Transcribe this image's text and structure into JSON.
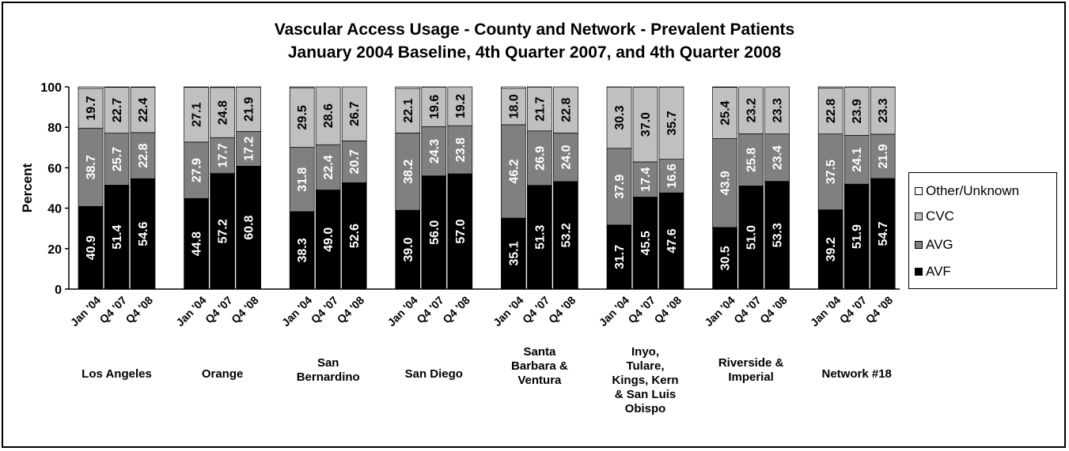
{
  "chart_data": {
    "type": "bar",
    "stacked": true,
    "title": "Vascular Access Usage - County and Network - Prevalent Patients",
    "subtitle": "January 2004 Baseline, 4th Quarter 2007, and 4th Quarter 2008",
    "ylabel": "Percent",
    "ylim": [
      0,
      100
    ],
    "yticks": [
      "0",
      "20",
      "40",
      "60",
      "80",
      "100"
    ],
    "period_labels": [
      "Jan '04",
      "Q4 '07",
      "Q4 '08"
    ],
    "groups": [
      {
        "label": "Los Angeles",
        "AVF": [
          40.9,
          51.4,
          54.6
        ],
        "AVG": [
          38.7,
          25.7,
          22.8
        ],
        "CVC": [
          19.7,
          22.7,
          22.4
        ]
      },
      {
        "label": "Orange",
        "AVF": [
          44.8,
          57.2,
          60.8
        ],
        "AVG": [
          27.9,
          17.7,
          17.2
        ],
        "CVC": [
          27.1,
          24.8,
          21.9
        ]
      },
      {
        "label": "San Bernardino",
        "AVF": [
          38.3,
          49.0,
          52.6
        ],
        "AVG": [
          31.8,
          22.4,
          20.7
        ],
        "CVC": [
          29.5,
          28.6,
          26.7
        ]
      },
      {
        "label": "San Diego",
        "AVF": [
          39.0,
          56.0,
          57.0
        ],
        "AVG": [
          38.2,
          24.3,
          23.8
        ],
        "CVC": [
          22.1,
          19.6,
          19.2
        ]
      },
      {
        "label": "Santa Barbara & Ventura",
        "AVF": [
          35.1,
          51.3,
          53.2
        ],
        "AVG": [
          46.2,
          26.9,
          24.0
        ],
        "CVC": [
          18.0,
          21.7,
          22.8
        ]
      },
      {
        "label": "Inyo, Tulare, Kings, Kern & San Luis Obispo",
        "AVF": [
          31.7,
          45.5,
          47.6
        ],
        "AVG": [
          37.9,
          17.4,
          16.6
        ],
        "CVC": [
          30.3,
          37.0,
          35.7
        ]
      },
      {
        "label": "Riverside & Imperial",
        "AVF": [
          30.5,
          51.0,
          53.3
        ],
        "AVG": [
          43.9,
          25.8,
          23.4
        ],
        "CVC": [
          25.4,
          23.2,
          23.3
        ]
      },
      {
        "label": "Network #18",
        "AVF": [
          39.2,
          51.9,
          54.7
        ],
        "AVG": [
          37.5,
          24.1,
          21.9
        ],
        "CVC": [
          22.8,
          23.9,
          23.3
        ]
      }
    ],
    "series": [
      {
        "name": "Other/Unknown",
        "color": "#ffffff"
      },
      {
        "name": "CVC",
        "color": "#c0c0c0"
      },
      {
        "name": "AVG",
        "color": "#808080"
      },
      {
        "name": "AVF",
        "color": "#000000"
      }
    ],
    "legend_position": "right",
    "grid": false
  }
}
